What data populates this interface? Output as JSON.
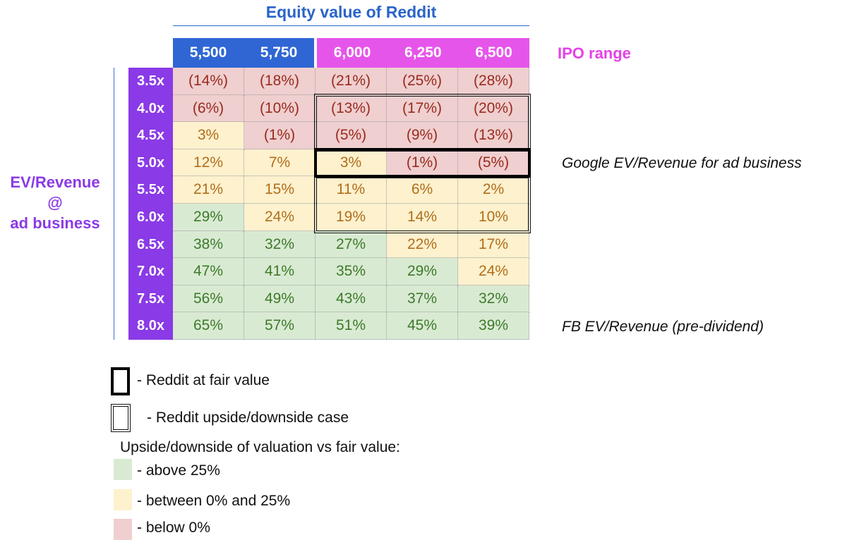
{
  "header": {
    "title": "Equity value of Reddit",
    "ipo_label": "IPO range",
    "columns": [
      {
        "label": "5,500",
        "color": "#2f66d4"
      },
      {
        "label": "5,750",
        "color": "#2f66d4"
      },
      {
        "label": "6,000",
        "color": "#e655ea"
      },
      {
        "label": "6,250",
        "color": "#e655ea"
      },
      {
        "label": "6,500",
        "color": "#e655ea"
      }
    ]
  },
  "side": {
    "label_lines": [
      "EV/Revenue",
      "@",
      "ad business"
    ],
    "color": "#8a3ae6"
  },
  "annotations": {
    "google": "Google EV/Revenue for ad business",
    "fb": "FB EV/Revenue (pre-dividend)"
  },
  "chart_data": {
    "type": "table",
    "title": "Equity value of Reddit",
    "row_axis_label": "EV/Revenue @ ad business",
    "columns": [
      "5,500",
      "5,750",
      "6,000",
      "6,250",
      "6,500"
    ],
    "rows": [
      {
        "label": "3.5x",
        "values": [
          "(14%)",
          "(18%)",
          "(21%)",
          "(25%)",
          "(28%)"
        ],
        "tiers": [
          "red",
          "red",
          "red",
          "red",
          "red"
        ]
      },
      {
        "label": "4.0x",
        "values": [
          "(6%)",
          "(10%)",
          "(13%)",
          "(17%)",
          "(20%)"
        ],
        "tiers": [
          "red",
          "red",
          "red",
          "red",
          "red"
        ]
      },
      {
        "label": "4.5x",
        "values": [
          "3%",
          "(1%)",
          "(5%)",
          "(9%)",
          "(13%)"
        ],
        "tiers": [
          "yellow",
          "red",
          "red",
          "red",
          "red"
        ]
      },
      {
        "label": "5.0x",
        "values": [
          "12%",
          "7%",
          "3%",
          "(1%)",
          "(5%)"
        ],
        "tiers": [
          "yellow",
          "yellow",
          "yellow",
          "red",
          "red"
        ]
      },
      {
        "label": "5.5x",
        "values": [
          "21%",
          "15%",
          "11%",
          "6%",
          "2%"
        ],
        "tiers": [
          "yellow",
          "yellow",
          "yellow",
          "yellow",
          "yellow"
        ]
      },
      {
        "label": "6.0x",
        "values": [
          "29%",
          "24%",
          "19%",
          "14%",
          "10%"
        ],
        "tiers": [
          "green",
          "yellow",
          "yellow",
          "yellow",
          "yellow"
        ]
      },
      {
        "label": "6.5x",
        "values": [
          "38%",
          "32%",
          "27%",
          "22%",
          "17%"
        ],
        "tiers": [
          "green",
          "green",
          "green",
          "yellow",
          "yellow"
        ]
      },
      {
        "label": "7.0x",
        "values": [
          "47%",
          "41%",
          "35%",
          "29%",
          "24%"
        ],
        "tiers": [
          "green",
          "green",
          "green",
          "green",
          "yellow"
        ]
      },
      {
        "label": "7.5x",
        "values": [
          "56%",
          "49%",
          "43%",
          "37%",
          "32%"
        ],
        "tiers": [
          "green",
          "green",
          "green",
          "green",
          "green"
        ]
      },
      {
        "label": "8.0x",
        "values": [
          "65%",
          "57%",
          "51%",
          "45%",
          "39%"
        ],
        "tiers": [
          "green",
          "green",
          "green",
          "green",
          "green"
        ]
      }
    ],
    "tier_colors": {
      "green": "#d9ead3",
      "yellow": "#fdf1ce",
      "red": "#efcfcf"
    }
  },
  "legend": {
    "fair_value": "- Reddit at fair value",
    "updown_case": "- Reddit upside/downside case",
    "heading": "Upside/downside of valuation vs fair value:",
    "above": "- above 25%",
    "between": "- between 0% and 25%",
    "below": "- below 0%"
  }
}
